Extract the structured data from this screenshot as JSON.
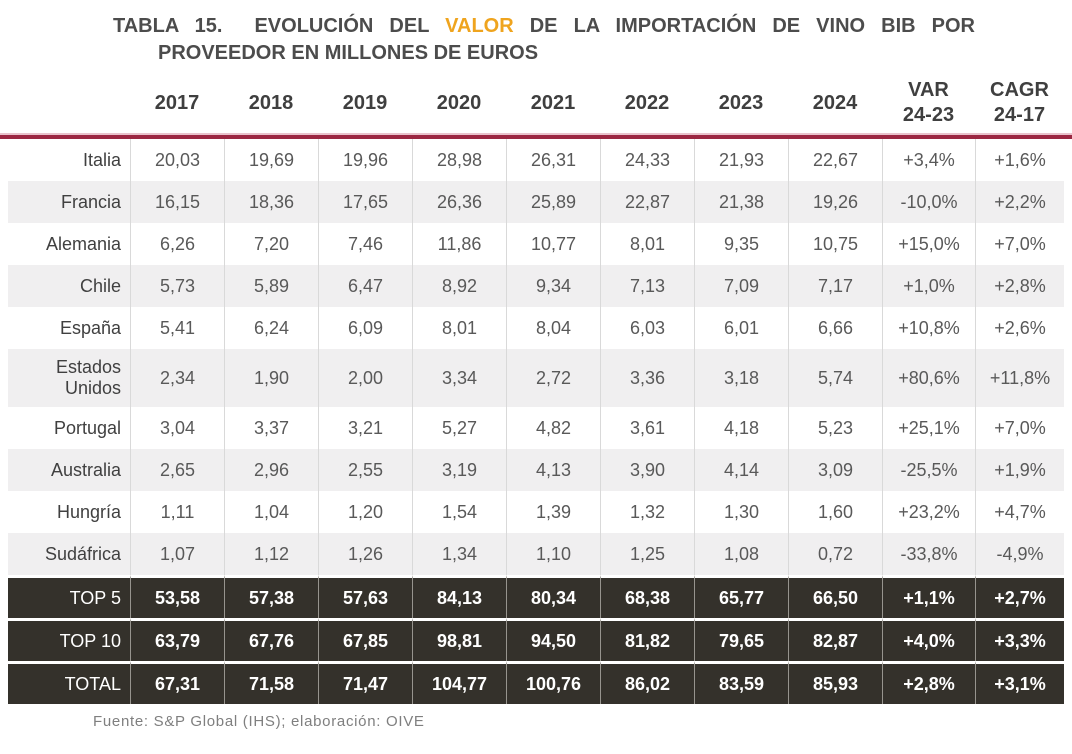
{
  "title": {
    "line1_prefix": "TABLA 15.",
    "line1_before": "EVOLUCIÓN DEL",
    "line1_highlight": "VALOR",
    "line1_after": "DE LA IMPORTACIÓN DE VINO BIB POR",
    "line2": "PROVEEDOR EN MILLONES DE EUROS"
  },
  "colors": {
    "title_text": "#4C4C4C",
    "highlight_orange": "#EFA41E",
    "divider_maroon": "#9B2742",
    "dark_row_bg": "#34312B",
    "gray_row_bg": "#F0EFF0",
    "grid_line": "#D9D9D9",
    "body_text": "#595959"
  },
  "columns": [
    "2017",
    "2018",
    "2019",
    "2020",
    "2021",
    "2022",
    "2023",
    "2024"
  ],
  "var_header": {
    "label": "VAR",
    "sub": "24-23"
  },
  "cagr_header": {
    "label": "CAGR",
    "sub": "24-17"
  },
  "rows": [
    {
      "label": "Italia",
      "kind": "white",
      "values": [
        "20,03",
        "19,69",
        "19,96",
        "28,98",
        "26,31",
        "24,33",
        "21,93",
        "22,67"
      ],
      "var": "+3,4%",
      "cagr": "+1,6%"
    },
    {
      "label": "Francia",
      "kind": "gray",
      "values": [
        "16,15",
        "18,36",
        "17,65",
        "26,36",
        "25,89",
        "22,87",
        "21,38",
        "19,26"
      ],
      "var": "-10,0%",
      "cagr": "+2,2%"
    },
    {
      "label": "Alemania",
      "kind": "white",
      "values": [
        "6,26",
        "7,20",
        "7,46",
        "11,86",
        "10,77",
        "8,01",
        "9,35",
        "10,75"
      ],
      "var": "+15,0%",
      "cagr": "+7,0%"
    },
    {
      "label": "Chile",
      "kind": "gray",
      "values": [
        "5,73",
        "5,89",
        "6,47",
        "8,92",
        "9,34",
        "7,13",
        "7,09",
        "7,17"
      ],
      "var": "+1,0%",
      "cagr": "+2,8%"
    },
    {
      "label": "España",
      "kind": "white",
      "values": [
        "5,41",
        "6,24",
        "6,09",
        "8,01",
        "8,04",
        "6,03",
        "6,01",
        "6,66"
      ],
      "var": "+10,8%",
      "cagr": "+2,6%"
    },
    {
      "label": "Estados Unidos",
      "kind": "gray",
      "tall": true,
      "values": [
        "2,34",
        "1,90",
        "2,00",
        "3,34",
        "2,72",
        "3,36",
        "3,18",
        "5,74"
      ],
      "var": "+80,6%",
      "cagr": "+11,8%"
    },
    {
      "label": "Portugal",
      "kind": "white",
      "values": [
        "3,04",
        "3,37",
        "3,21",
        "5,27",
        "4,82",
        "3,61",
        "4,18",
        "5,23"
      ],
      "var": "+25,1%",
      "cagr": "+7,0%"
    },
    {
      "label": "Australia",
      "kind": "gray",
      "values": [
        "2,65",
        "2,96",
        "2,55",
        "3,19",
        "4,13",
        "3,90",
        "4,14",
        "3,09"
      ],
      "var": "-25,5%",
      "cagr": "+1,9%"
    },
    {
      "label": "Hungría",
      "kind": "white",
      "values": [
        "1,11",
        "1,04",
        "1,20",
        "1,54",
        "1,39",
        "1,32",
        "1,30",
        "1,60"
      ],
      "var": "+23,2%",
      "cagr": "+4,7%"
    },
    {
      "label": "Sudáfrica",
      "kind": "gray",
      "values": [
        "1,07",
        "1,12",
        "1,26",
        "1,34",
        "1,10",
        "1,25",
        "1,08",
        "0,72"
      ],
      "var": "-33,8%",
      "cagr": "-4,9%"
    },
    {
      "label": "TOP 5",
      "kind": "dark",
      "values": [
        "53,58",
        "57,38",
        "57,63",
        "84,13",
        "80,34",
        "68,38",
        "65,77",
        "66,50"
      ],
      "var": "+1,1%",
      "cagr": "+2,7%"
    },
    {
      "label": "TOP 10",
      "kind": "dark",
      "values": [
        "63,79",
        "67,76",
        "67,85",
        "98,81",
        "94,50",
        "81,82",
        "79,65",
        "82,87"
      ],
      "var": "+4,0%",
      "cagr": "+3,3%"
    },
    {
      "label": "TOTAL",
      "kind": "dark",
      "values": [
        "67,31",
        "71,58",
        "71,47",
        "104,77",
        "100,76",
        "86,02",
        "83,59",
        "85,93"
      ],
      "var": "+2,8%",
      "cagr": "+3,1%"
    }
  ],
  "footer": {
    "text": "Fuente: S&P Global (IHS); elaboración: OIVE"
  }
}
